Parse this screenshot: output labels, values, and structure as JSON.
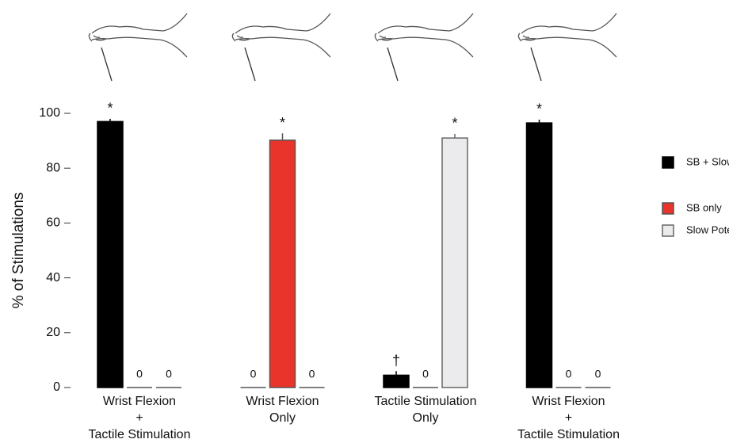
{
  "chart_data": {
    "type": "bar",
    "y_label": "% of Stimulations",
    "categories": [
      [
        "Wrist Flexion",
        "+",
        "Tactile Stimulation"
      ],
      [
        "Wrist Flexion",
        "Only"
      ],
      [
        "Tactile Stimulation",
        "Only"
      ],
      [
        "Wrist Flexion",
        "+",
        "Tactile Stimulation"
      ]
    ],
    "series": [
      {
        "name": "SB + Slow Potential",
        "color": "#000000",
        "edge": "#000000",
        "values": [
          97,
          0,
          4.5,
          96.5
        ],
        "errors": [
          1,
          0,
          1.5,
          1.2
        ],
        "markers": [
          "*",
          null,
          "†",
          "*"
        ]
      },
      {
        "name": "SB only",
        "color": "#e8342a",
        "edge": "#555555",
        "values": [
          0,
          90.2,
          0,
          0
        ],
        "errors": [
          0,
          2.5,
          0,
          0
        ],
        "markers": [
          null,
          "*",
          null,
          null
        ]
      },
      {
        "name": "Slow Potential only",
        "color": "#ebebed",
        "edge": "#666666",
        "values": [
          0,
          0,
          91,
          0
        ],
        "errors": [
          0,
          0,
          1.5,
          0
        ],
        "markers": [
          null,
          null,
          "*",
          null
        ]
      }
    ],
    "ylim": [
      0,
      100
    ],
    "yticks": [
      0,
      20,
      40,
      60,
      80,
      100
    ],
    "legend": "right"
  }
}
